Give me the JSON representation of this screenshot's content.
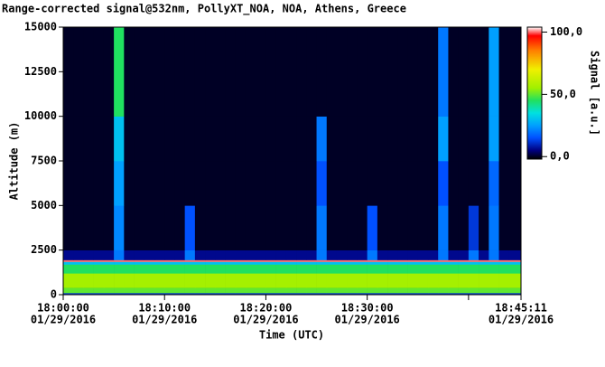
{
  "chart_data": {
    "type": "heatmap",
    "title": "Range-corrected signal@532nm, PollyXT_NOA, NOA, Athens, Greece",
    "x_label": "Time (UTC)",
    "y_label": "Altitude (m)",
    "colorbar_label": "Signal [a.u.]",
    "xlim": [
      0,
      45.18
    ],
    "xticks": [
      {
        "value": 0,
        "label": "18:00:00",
        "date": "01/29/2016"
      },
      {
        "value": 10,
        "label": "18:10:00",
        "date": "01/29/2016"
      },
      {
        "value": 20,
        "label": "18:20:00",
        "date": "01/29/2016"
      },
      {
        "value": 30,
        "label": "18:30:00",
        "date": "01/29/2016"
      },
      {
        "value": 40
      },
      {
        "value": 45.18,
        "label": "18:45:11",
        "date": "01/29/2016"
      }
    ],
    "ylim": [
      0,
      15000
    ],
    "yticks": [
      0,
      2500,
      5000,
      7500,
      10000,
      12500,
      15000
    ],
    "clim": [
      -2,
      104
    ],
    "cticks": [
      {
        "value": 0,
        "label": "0,0"
      },
      {
        "value": 50,
        "label": "50,0"
      },
      {
        "value": 100,
        "label": "100,0"
      }
    ],
    "colormap": [
      {
        "value": -2,
        "color": "#000000"
      },
      {
        "value": 5,
        "color": "#000080"
      },
      {
        "value": 15,
        "color": "#0050ff"
      },
      {
        "value": 25,
        "color": "#00a0ff"
      },
      {
        "value": 35,
        "color": "#00e0e0"
      },
      {
        "value": 45,
        "color": "#20e060"
      },
      {
        "value": 55,
        "color": "#a0f000"
      },
      {
        "value": 70,
        "color": "#f0f000"
      },
      {
        "value": 85,
        "color": "#ff8000"
      },
      {
        "value": 97,
        "color": "#ff0000"
      },
      {
        "value": 104,
        "color": "#ffffff"
      }
    ],
    "x_edges": [
      0,
      1,
      2,
      3,
      4,
      5,
      6,
      7,
      8,
      9,
      10,
      11,
      12,
      13,
      14,
      15,
      16,
      17,
      18,
      19,
      20,
      21,
      22,
      23,
      24,
      25,
      26,
      27,
      28,
      29,
      30,
      31,
      32,
      33,
      34,
      35,
      36,
      37,
      38,
      39,
      40,
      41,
      42,
      43,
      44,
      45,
      45.18
    ],
    "y_edges": [
      0,
      100,
      400,
      1200,
      1700,
      1850,
      1950,
      2500,
      5000,
      7500,
      10000,
      15000
    ],
    "z": [
      [
        12,
        12,
        12,
        12,
        12,
        12,
        12,
        12,
        12,
        12,
        12,
        12,
        12,
        12,
        12,
        12,
        12,
        12,
        12,
        12,
        12,
        12,
        12,
        12,
        12,
        12,
        12,
        12,
        12,
        12,
        12,
        12,
        12,
        12,
        12,
        12,
        12,
        12,
        12,
        12,
        12,
        12,
        12,
        12,
        12,
        12
      ],
      [
        50,
        50,
        50,
        50,
        50,
        50,
        50,
        50,
        50,
        50,
        50,
        50,
        50,
        50,
        50,
        50,
        50,
        50,
        50,
        50,
        50,
        50,
        50,
        50,
        50,
        50,
        50,
        50,
        50,
        50,
        50,
        50,
        50,
        50,
        50,
        50,
        50,
        50,
        50,
        50,
        50,
        50,
        50,
        50,
        50,
        50
      ],
      [
        56,
        56,
        56,
        56,
        56,
        56,
        56,
        56,
        56,
        56,
        56,
        56,
        56,
        56,
        56,
        56,
        56,
        56,
        56,
        56,
        56,
        56,
        56,
        56,
        56,
        56,
        56,
        56,
        56,
        56,
        56,
        56,
        56,
        56,
        56,
        56,
        56,
        56,
        56,
        56,
        56,
        56,
        56,
        56,
        56,
        56
      ],
      [
        45,
        45,
        45,
        45,
        45,
        45,
        45,
        45,
        45,
        45,
        45,
        45,
        45,
        45,
        45,
        45,
        45,
        45,
        45,
        45,
        45,
        45,
        45,
        45,
        45,
        45,
        45,
        45,
        45,
        45,
        45,
        45,
        45,
        45,
        45,
        45,
        45,
        45,
        45,
        45,
        45,
        45,
        45,
        45,
        45,
        45
      ],
      [
        30,
        30,
        30,
        30,
        30,
        30,
        30,
        30,
        30,
        30,
        30,
        30,
        30,
        30,
        30,
        30,
        30,
        30,
        30,
        30,
        30,
        30,
        30,
        30,
        30,
        30,
        30,
        30,
        30,
        30,
        30,
        30,
        30,
        30,
        30,
        30,
        30,
        30,
        30,
        30,
        30,
        30,
        30,
        30,
        30,
        30
      ],
      [
        100,
        100,
        100,
        100,
        100,
        100,
        100,
        100,
        100,
        100,
        100,
        100,
        100,
        100,
        100,
        100,
        100,
        100,
        100,
        100,
        100,
        100,
        100,
        100,
        100,
        100,
        100,
        100,
        100,
        100,
        100,
        100,
        100,
        100,
        100,
        100,
        100,
        100,
        100,
        100,
        100,
        100,
        100,
        100,
        100,
        100
      ],
      [
        6,
        6,
        6,
        6,
        6,
        20,
        6,
        6,
        6,
        6,
        6,
        6,
        20,
        6,
        6,
        6,
        6,
        6,
        6,
        6,
        6,
        6,
        6,
        6,
        6,
        20,
        6,
        6,
        6,
        6,
        20,
        6,
        6,
        6,
        6,
        6,
        6,
        20,
        6,
        6,
        20,
        6,
        20,
        6,
        6,
        6
      ],
      [
        0,
        0,
        0,
        0,
        0,
        22,
        0,
        0,
        0,
        0,
        0,
        0,
        15,
        0,
        0,
        0,
        0,
        0,
        0,
        0,
        0,
        0,
        0,
        0,
        0,
        20,
        0,
        0,
        0,
        0,
        15,
        0,
        0,
        0,
        0,
        0,
        0,
        20,
        0,
        0,
        12,
        0,
        20,
        0,
        0,
        0
      ],
      [
        0,
        0,
        0,
        0,
        0,
        25,
        0,
        0,
        0,
        0,
        0,
        0,
        0,
        0,
        0,
        0,
        0,
        0,
        0,
        0,
        0,
        0,
        0,
        0,
        0,
        15,
        0,
        0,
        0,
        0,
        0,
        0,
        0,
        0,
        0,
        0,
        0,
        15,
        0,
        0,
        0,
        0,
        18,
        0,
        0,
        0
      ],
      [
        0,
        0,
        0,
        0,
        0,
        30,
        0,
        0,
        0,
        0,
        0,
        0,
        0,
        0,
        0,
        0,
        0,
        0,
        0,
        0,
        0,
        0,
        0,
        0,
        0,
        20,
        0,
        0,
        0,
        0,
        0,
        0,
        0,
        0,
        0,
        0,
        0,
        25,
        0,
        0,
        0,
        0,
        25,
        0,
        0,
        0
      ],
      [
        0,
        0,
        0,
        0,
        0,
        45,
        0,
        0,
        0,
        0,
        0,
        0,
        0,
        0,
        0,
        0,
        0,
        0,
        0,
        0,
        0,
        0,
        0,
        0,
        0,
        0,
        0,
        0,
        0,
        0,
        0,
        0,
        0,
        0,
        0,
        0,
        0,
        20,
        0,
        0,
        0,
        0,
        25,
        0,
        0,
        0
      ]
    ]
  }
}
